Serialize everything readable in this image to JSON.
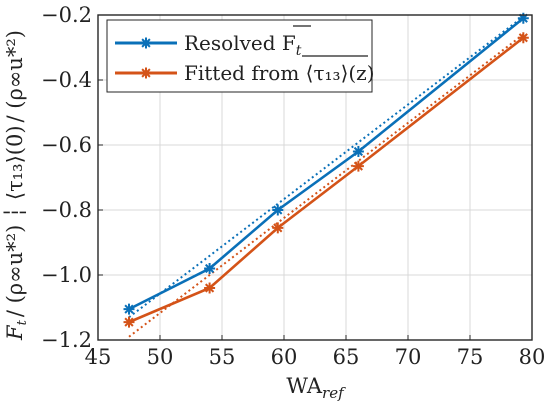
{
  "chart_data": {
    "type": "line",
    "x": [
      47.5,
      54,
      59.5,
      66,
      79.3
    ],
    "xlim": [
      45,
      80
    ],
    "ylim": [
      -1.2,
      -0.2
    ],
    "xticks": [
      45,
      50,
      55,
      60,
      65,
      70,
      75,
      80
    ],
    "xtick_labels": [
      "45",
      "50",
      "55",
      "60",
      "65",
      "70",
      "75",
      "80"
    ],
    "yticks": [
      -1.2,
      -1.0,
      -0.8,
      -0.6,
      -0.4,
      -0.2
    ],
    "ytick_labels": [
      "−1.2",
      "−1.0",
      "−0.8",
      "−0.6",
      "−0.4",
      "−0.2"
    ],
    "grid": true,
    "legend_position": "top-left",
    "xlabel": {
      "main": "WA",
      "sub": "ref"
    },
    "ylabel": {
      "lower_main": "F",
      "lower_sub": "t",
      "lower_den": "/ (ρ∞u*²)",
      "separator": "┆",
      "upper_main": "⟨τ₁₃⟩(0)",
      "upper_den": "/ (ρ∞u*²)"
    },
    "series": [
      {
        "name": "Resolved F",
        "name_sub": "t",
        "color": "#0a70b8",
        "marker": "asterisk",
        "values": [
          -1.105,
          -0.98,
          -0.8,
          -0.62,
          -0.21
        ],
        "fit": {
          "style": "dotted",
          "values": [
            -1.13,
            -0.205
          ]
        }
      },
      {
        "name": "Fitted from ⟨τ₁₃⟩(z)",
        "color": "#d45318",
        "marker": "asterisk",
        "values": [
          -1.145,
          -1.04,
          -0.855,
          -0.665,
          -0.27
        ],
        "fit": {
          "style": "dotted",
          "values": [
            -1.19,
            -0.26
          ]
        }
      }
    ]
  }
}
